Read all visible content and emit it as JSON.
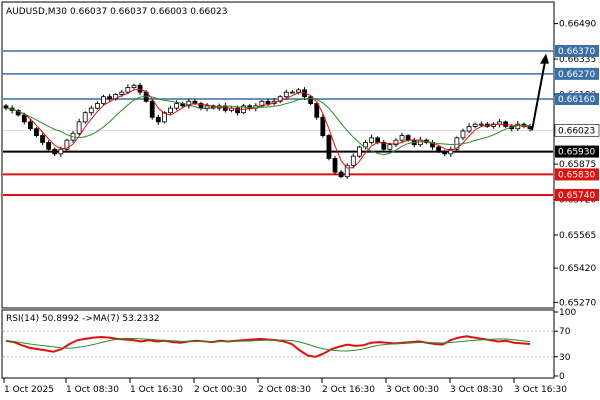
{
  "header": {
    "symbol_label": "AUDUSD,M30",
    "ohlc_label": "0.66037 0.66037 0.66003 0.66023"
  },
  "chart_data": {
    "type": "candlestick",
    "symbol": "AUDUSD",
    "timeframe": "M30",
    "ohlc": {
      "open": 0.66037,
      "high": 0.66037,
      "low": 0.66003,
      "close": 0.66023
    },
    "x_tick_labels": [
      "1 Oct 2025",
      "1 Oct 08:30",
      "1 Oct 16:30",
      "2 Oct 00:30",
      "2 Oct 08:30",
      "2 Oct 16:30",
      "3 Oct 00:30",
      "3 Oct 08:30",
      "3 Oct 16:30"
    ],
    "ylim": [
      0.6525,
      0.6658
    ],
    "y_tick_labels": [
      0.6649,
      0.66335,
      0.6618,
      0.66025,
      0.65875,
      0.6572,
      0.65565,
      0.6542,
      0.6527
    ],
    "y_tick_texts": [
      "0.66490",
      "0.66335",
      "0.66180",
      "0.66025",
      "0.65875",
      "0.65720",
      "0.65565",
      "0.65420",
      "0.65270"
    ],
    "levels": [
      {
        "value": 0.6637,
        "label": "0.66370",
        "color": "#3a6fa8"
      },
      {
        "value": 0.6627,
        "label": "0.66270",
        "color": "#3a6fa8"
      },
      {
        "value": 0.6616,
        "label": "0.66160",
        "color": "#3a6fa8"
      },
      {
        "value": 0.6593,
        "label": "0.65930",
        "color": "#000000"
      },
      {
        "value": 0.6583,
        "label": "0.65830",
        "color": "#e01010"
      },
      {
        "value": 0.6574,
        "label": "0.65740",
        "color": "#e01010"
      }
    ],
    "current_price": {
      "value": 0.66023,
      "label": "0.66023"
    },
    "close_series": [
      0.6612,
      0.6611,
      0.6609,
      0.6606,
      0.6603,
      0.66,
      0.6597,
      0.6594,
      0.6592,
      0.6594,
      0.6598,
      0.6601,
      0.6606,
      0.661,
      0.6612,
      0.6614,
      0.6617,
      0.6616,
      0.6618,
      0.6619,
      0.6621,
      0.6622,
      0.6619,
      0.6615,
      0.6608,
      0.6606,
      0.661,
      0.6612,
      0.6614,
      0.6613,
      0.6615,
      0.6614,
      0.6612,
      0.6613,
      0.6612,
      0.6613,
      0.6611,
      0.6612,
      0.661,
      0.6613,
      0.6612,
      0.6613,
      0.6615,
      0.6614,
      0.6615,
      0.6617,
      0.6619,
      0.6619,
      0.662,
      0.6617,
      0.6614,
      0.6608,
      0.66,
      0.659,
      0.6584,
      0.6582,
      0.6587,
      0.6591,
      0.6595,
      0.6597,
      0.6599,
      0.6597,
      0.6594,
      0.6596,
      0.6598,
      0.66,
      0.6598,
      0.6596,
      0.6598,
      0.6597,
      0.6595,
      0.6593,
      0.6592,
      0.6594,
      0.6599,
      0.6602,
      0.6604,
      0.6605,
      0.6605,
      0.6604,
      0.6605,
      0.6606,
      0.6604,
      0.6603,
      0.6605,
      0.6604,
      0.6603
    ],
    "target_arrow": {
      "from": 0.66023,
      "to": 0.6635
    },
    "rsi": {
      "label": "RSI(14) 50.8992  ->MA(7) 53.2332",
      "period": 14,
      "value": 50.8992,
      "ma_period": 7,
      "ma_value": 53.2332,
      "ylim": [
        0,
        100
      ],
      "levels": [
        30,
        70
      ],
      "tick_labels": [
        "100",
        "70",
        "30",
        "0"
      ],
      "values": [
        55,
        53,
        48,
        44,
        42,
        40,
        38,
        42,
        50,
        56,
        58,
        60,
        61,
        60,
        58,
        57,
        56,
        54,
        56,
        54,
        55,
        53,
        52,
        54,
        55,
        54,
        53,
        55,
        54,
        55,
        56,
        57,
        58,
        57,
        56,
        54,
        50,
        40,
        32,
        30,
        35,
        42,
        46,
        49,
        47,
        48,
        52,
        53,
        52,
        51,
        52,
        53,
        54,
        52,
        50,
        49,
        56,
        60,
        62,
        60,
        58,
        56,
        54,
        55,
        52,
        51,
        50
      ]
    }
  }
}
